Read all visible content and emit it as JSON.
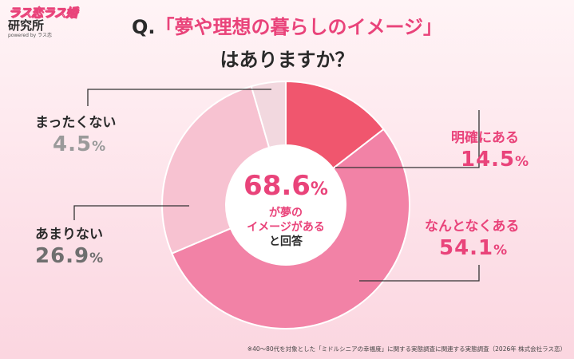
{
  "logo": {
    "line1": "ラス恋ラス婚",
    "line2": "研究所",
    "line3": "powered by ラス恋"
  },
  "title": {
    "q": "Q.",
    "line1": "「夢や理想の暮らしのイメージ」",
    "line2": "はありますか？"
  },
  "center": {
    "value": "68.6",
    "unit": "%",
    "line1": "が夢の",
    "line2": "イメージがある",
    "line3": "と回答"
  },
  "chart_data": {
    "type": "pie",
    "slices": [
      {
        "label": "明確にある",
        "value": 14.5,
        "color": "#f0566e"
      },
      {
        "label": "なんとなくある",
        "value": 54.1,
        "color": "#f282a6"
      },
      {
        "label": "あまりない",
        "value": 26.9,
        "color": "#f7c2d1"
      },
      {
        "label": "まったくない",
        "value": 4.5,
        "color": "#f2d8df"
      }
    ],
    "unit": "%"
  },
  "footnote": "※40〜80代を対象とした「ミドルシニアの幸福度」に関する実態調査に関連する実態調査（2026年 株式会社ラス恋）"
}
